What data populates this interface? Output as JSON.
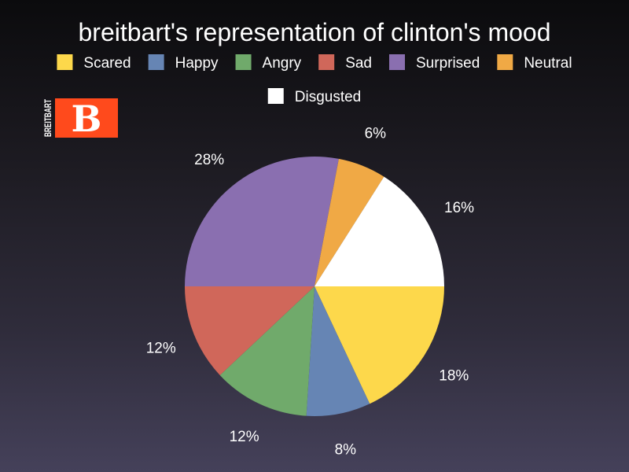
{
  "chart_data": {
    "type": "pie",
    "title": "breitbart's representation of clinton's mood",
    "legend_position": "top",
    "categories": [
      "Scared",
      "Happy",
      "Angry",
      "Sad",
      "Surprised",
      "Neutral",
      "Disgusted"
    ],
    "values": [
      18,
      8,
      12,
      12,
      28,
      6,
      16
    ],
    "labels": [
      "18%",
      "8%",
      "12%",
      "12%",
      "28%",
      "6%",
      "16%"
    ],
    "colors": [
      "#fdd84b",
      "#6685b4",
      "#70aa6b",
      "#d0675a",
      "#8a6fb0",
      "#f0a945",
      "#ffffff"
    ]
  },
  "logo": {
    "letter": "B",
    "wordmark": "BREITBART",
    "brand_color": "#ff4a1c"
  }
}
